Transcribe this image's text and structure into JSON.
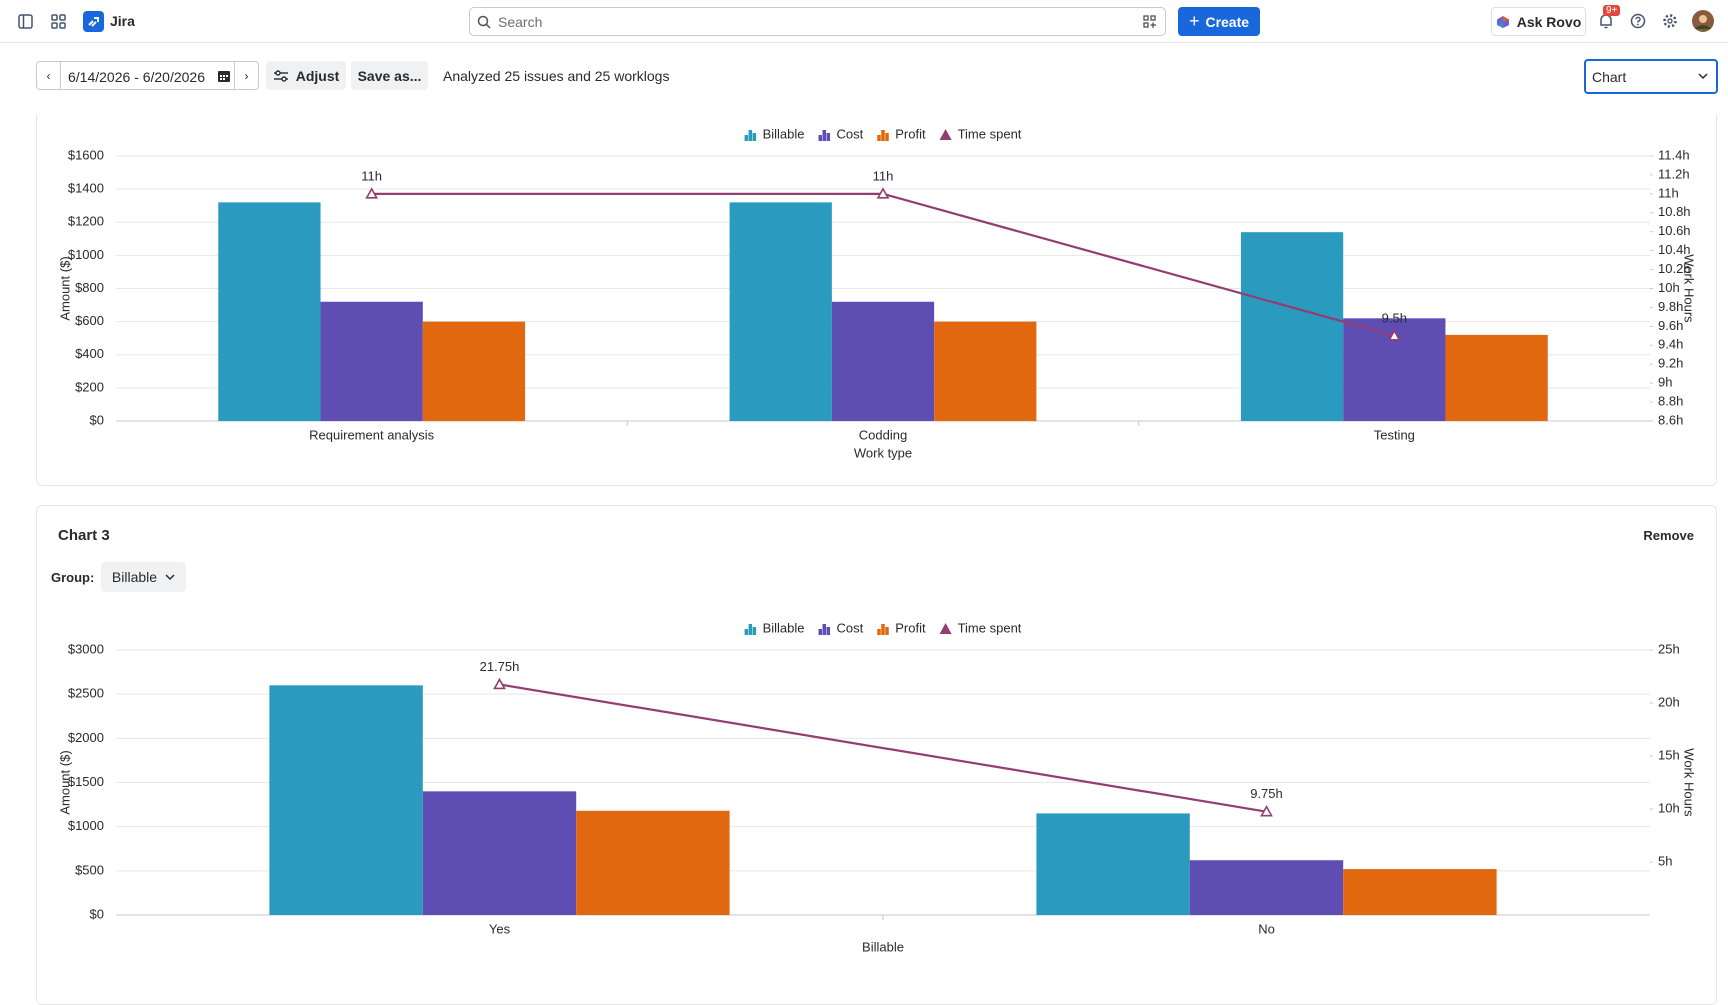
{
  "topbar": {
    "app_name": "Jira",
    "search_placeholder": "Search",
    "create": "Create",
    "ask_rovo": "Ask Rovo",
    "notifications_badge": "9+"
  },
  "toolbar": {
    "date_range": "6/14/2026 - 6/20/2026",
    "adjust": "Adjust",
    "save_as": "Save as...",
    "summary": "Analyzed 25 issues and 25 worklogs",
    "view_select": "Chart"
  },
  "chart3_panel": {
    "title": "Chart 3",
    "remove": "Remove",
    "group_label": "Group:",
    "group_value": "Billable"
  },
  "chart_data": [
    {
      "type": "bar",
      "x_label": "Work type",
      "y_label": "Amount ($)",
      "y2_label": "Work Hours",
      "categories": [
        "Requirement analysis",
        "Codding",
        "Testing"
      ],
      "series": [
        {
          "name": "Billable",
          "color": "#2a9abf",
          "values": [
            1320,
            1320,
            1140
          ]
        },
        {
          "name": "Cost",
          "color": "#5e4db2",
          "values": [
            720,
            720,
            620
          ]
        },
        {
          "name": "Profit",
          "color": "#e2680f",
          "values": [
            600,
            600,
            520
          ]
        },
        {
          "name": "Time spent",
          "type": "line",
          "axis": "y2",
          "color": "#943d73",
          "values": [
            11,
            11,
            9.5
          ],
          "value_labels": [
            "11h",
            "11h",
            "9.5h"
          ]
        }
      ],
      "ylim": [
        0,
        1600
      ],
      "yticks": [
        {
          "value": 0,
          "label": "$0"
        },
        {
          "value": 200,
          "label": "$200"
        },
        {
          "value": 400,
          "label": "$400"
        },
        {
          "value": 600,
          "label": "$600"
        },
        {
          "value": 800,
          "label": "$800"
        },
        {
          "value": 1000,
          "label": "$1000"
        },
        {
          "value": 1200,
          "label": "$1200"
        },
        {
          "value": 1400,
          "label": "$1400"
        },
        {
          "value": 1600,
          "label": "$1600"
        }
      ],
      "y2lim": [
        8.6,
        11.4
      ],
      "y2ticks": [
        {
          "value": 8.6,
          "label": "8.6h"
        },
        {
          "value": 8.8,
          "label": "8.8h"
        },
        {
          "value": 9,
          "label": "9h"
        },
        {
          "value": 9.2,
          "label": "9.2h"
        },
        {
          "value": 9.4,
          "label": "9.4h"
        },
        {
          "value": 9.6,
          "label": "9.6h"
        },
        {
          "value": 9.8,
          "label": "9.8h"
        },
        {
          "value": 10,
          "label": "10h"
        },
        {
          "value": 10.2,
          "label": "10.2h"
        },
        {
          "value": 10.4,
          "label": "10.4h"
        },
        {
          "value": 10.6,
          "label": "10.6h"
        },
        {
          "value": 10.8,
          "label": "10.8h"
        },
        {
          "value": 11,
          "label": "11h"
        },
        {
          "value": 11.2,
          "label": "11.2h"
        },
        {
          "value": 11.4,
          "label": "11.4h"
        }
      ],
      "grid": true
    },
    {
      "type": "bar",
      "x_label": "Billable",
      "y_label": "Amount ($)",
      "y2_label": "Work Hours",
      "categories": [
        "Yes",
        "No"
      ],
      "series": [
        {
          "name": "Billable",
          "color": "#2a9abf",
          "values": [
            2600,
            1150
          ]
        },
        {
          "name": "Cost",
          "color": "#5e4db2",
          "values": [
            1400,
            620
          ]
        },
        {
          "name": "Profit",
          "color": "#e2680f",
          "values": [
            1180,
            520
          ]
        },
        {
          "name": "Time spent",
          "type": "line",
          "axis": "y2",
          "color": "#943d73",
          "values": [
            21.75,
            9.75
          ],
          "value_labels": [
            "21.75h",
            "9.75h"
          ]
        }
      ],
      "ylim": [
        0,
        3000
      ],
      "yticks": [
        {
          "value": 0,
          "label": "$0"
        },
        {
          "value": 500,
          "label": "$500"
        },
        {
          "value": 1000,
          "label": "$1000"
        },
        {
          "value": 1500,
          "label": "$1500"
        },
        {
          "value": 2000,
          "label": "$2000"
        },
        {
          "value": 2500,
          "label": "$2500"
        },
        {
          "value": 3000,
          "label": "$3000"
        }
      ],
      "y2lim": [
        0,
        25
      ],
      "y2ticks": [
        {
          "value": 5,
          "label": "5h"
        },
        {
          "value": 10,
          "label": "10h"
        },
        {
          "value": 15,
          "label": "15h"
        },
        {
          "value": 20,
          "label": "20h"
        },
        {
          "value": 25,
          "label": "25h"
        }
      ],
      "grid": true
    }
  ]
}
